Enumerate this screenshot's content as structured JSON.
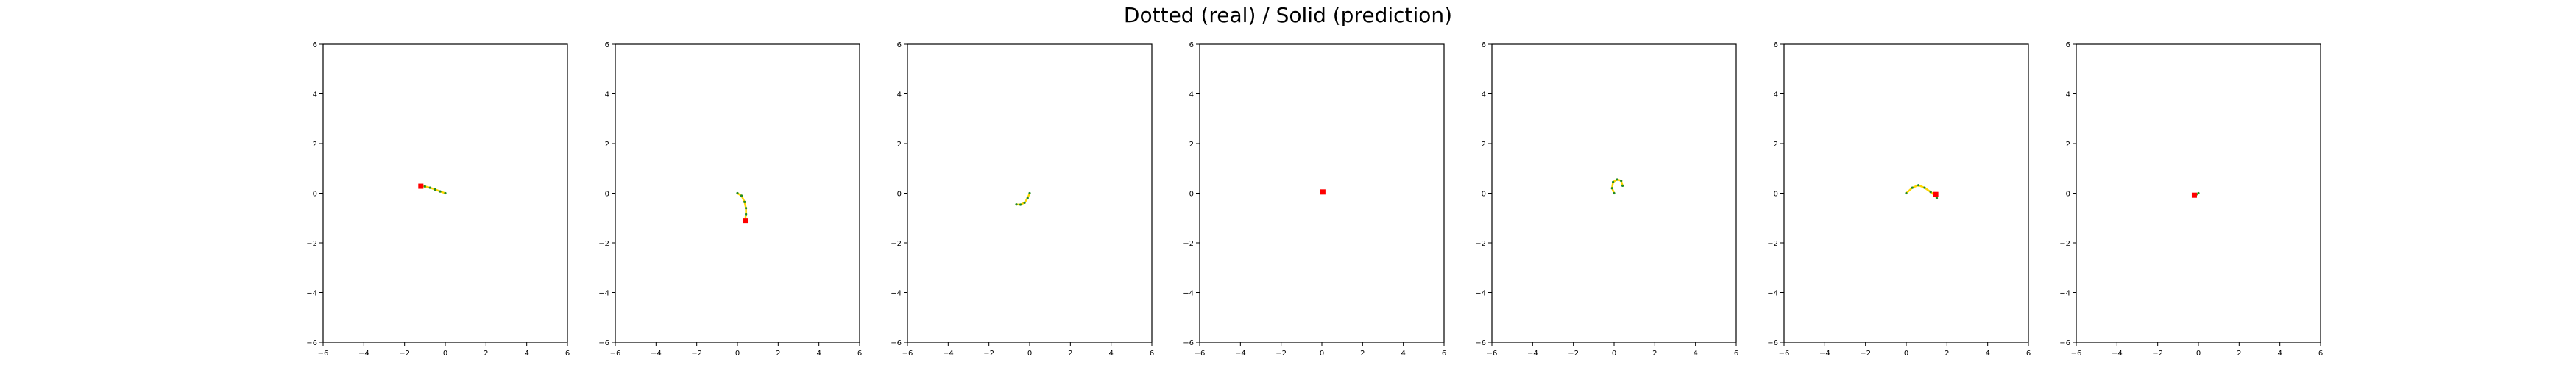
{
  "title": "Dotted (real) / Solid (prediction)",
  "chart_data": [
    {
      "type": "line",
      "xlim": [
        -6,
        6
      ],
      "ylim": [
        -6,
        6
      ],
      "xticks": [
        -6,
        -4,
        -2,
        0,
        2,
        4,
        6
      ],
      "yticks": [
        -6,
        -4,
        -2,
        0,
        2,
        4,
        6
      ],
      "grid": false,
      "real": [
        [
          0,
          0
        ],
        [
          -0.25,
          0.07
        ],
        [
          -0.5,
          0.15
        ],
        [
          -0.75,
          0.22
        ],
        [
          -1.0,
          0.27
        ],
        [
          -1.2,
          0.28
        ]
      ],
      "prediction": [
        [
          0,
          0
        ],
        [
          -0.25,
          0.07
        ],
        [
          -0.5,
          0.15
        ],
        [
          -0.75,
          0.22
        ],
        [
          -1.0,
          0.27
        ],
        [
          -1.2,
          0.28
        ]
      ],
      "end_marker": [
        -1.2,
        0.28
      ]
    },
    {
      "type": "line",
      "xlim": [
        -6,
        6
      ],
      "ylim": [
        -6,
        6
      ],
      "xticks": [
        -6,
        -4,
        -2,
        0,
        2,
        4,
        6
      ],
      "yticks": [
        -6,
        -4,
        -2,
        0,
        2,
        4,
        6
      ],
      "grid": false,
      "real": [
        [
          0,
          0
        ],
        [
          0.2,
          -0.1
        ],
        [
          0.35,
          -0.35
        ],
        [
          0.42,
          -0.6
        ],
        [
          0.42,
          -0.85
        ],
        [
          0.38,
          -1.1
        ]
      ],
      "prediction": [
        [
          0,
          0
        ],
        [
          0.2,
          -0.1
        ],
        [
          0.35,
          -0.35
        ],
        [
          0.42,
          -0.6
        ],
        [
          0.42,
          -0.85
        ],
        [
          0.38,
          -1.1
        ]
      ],
      "end_marker": [
        0.38,
        -1.1
      ]
    },
    {
      "type": "line",
      "xlim": [
        -6,
        6
      ],
      "ylim": [
        -6,
        6
      ],
      "xticks": [
        -6,
        -4,
        -2,
        0,
        2,
        4,
        6
      ],
      "yticks": [
        -6,
        -4,
        -2,
        0,
        2,
        4,
        6
      ],
      "grid": false,
      "real": [
        [
          0,
          0
        ],
        [
          -0.1,
          -0.2
        ],
        [
          -0.25,
          -0.38
        ],
        [
          -0.45,
          -0.46
        ],
        [
          -0.65,
          -0.45
        ]
      ],
      "prediction": [
        [
          0,
          0
        ],
        [
          -0.1,
          -0.2
        ],
        [
          -0.25,
          -0.38
        ],
        [
          -0.45,
          -0.46
        ],
        [
          -0.65,
          -0.45
        ]
      ],
      "end_marker": null
    },
    {
      "type": "line",
      "xlim": [
        -6,
        6
      ],
      "ylim": [
        -6,
        6
      ],
      "xticks": [
        -6,
        -4,
        -2,
        0,
        2,
        4,
        6
      ],
      "yticks": [
        -6,
        -4,
        -2,
        0,
        2,
        4,
        6
      ],
      "grid": false,
      "real": [
        [
          0,
          0
        ],
        [
          0.05,
          0.05
        ]
      ],
      "prediction": [
        [
          0,
          0
        ],
        [
          0.05,
          0.05
        ]
      ],
      "end_marker": [
        0.05,
        0.05
      ]
    },
    {
      "type": "line",
      "xlim": [
        -6,
        6
      ],
      "ylim": [
        -6,
        6
      ],
      "xticks": [
        -6,
        -4,
        -2,
        0,
        2,
        4,
        6
      ],
      "yticks": [
        -6,
        -4,
        -2,
        0,
        2,
        4,
        6
      ],
      "grid": false,
      "real": [
        [
          0,
          0
        ],
        [
          -0.1,
          0.2
        ],
        [
          -0.05,
          0.45
        ],
        [
          0.15,
          0.55
        ],
        [
          0.35,
          0.5
        ],
        [
          0.42,
          0.3
        ]
      ],
      "prediction": [
        [
          0,
          0
        ],
        [
          -0.1,
          0.2
        ],
        [
          -0.05,
          0.45
        ],
        [
          0.15,
          0.55
        ],
        [
          0.35,
          0.5
        ],
        [
          0.42,
          0.3
        ]
      ],
      "end_marker": null
    },
    {
      "type": "line",
      "xlim": [
        -6,
        6
      ],
      "ylim": [
        -6,
        6
      ],
      "xticks": [
        -6,
        -4,
        -2,
        0,
        2,
        4,
        6
      ],
      "yticks": [
        -6,
        -4,
        -2,
        0,
        2,
        4,
        6
      ],
      "grid": false,
      "real": [
        [
          0,
          0
        ],
        [
          0.3,
          0.22
        ],
        [
          0.6,
          0.32
        ],
        [
          0.9,
          0.22
        ],
        [
          1.2,
          0.05
        ],
        [
          1.45,
          -0.12
        ],
        [
          1.5,
          -0.2
        ]
      ],
      "prediction": [
        [
          0,
          0
        ],
        [
          0.3,
          0.22
        ],
        [
          0.6,
          0.32
        ],
        [
          0.9,
          0.22
        ],
        [
          1.2,
          0.05
        ],
        [
          1.45,
          -0.12
        ],
        [
          1.5,
          -0.2
        ]
      ],
      "end_marker": [
        1.45,
        -0.05
      ]
    },
    {
      "type": "line",
      "xlim": [
        -6,
        6
      ],
      "ylim": [
        -6,
        6
      ],
      "xticks": [
        -6,
        -4,
        -2,
        0,
        2,
        4,
        6
      ],
      "yticks": [
        -6,
        -4,
        -2,
        0,
        2,
        4,
        6
      ],
      "grid": false,
      "real": [
        [
          0,
          0
        ],
        [
          -0.1,
          -0.05
        ],
        [
          -0.2,
          -0.08
        ]
      ],
      "prediction": [
        [
          0,
          0
        ],
        [
          -0.1,
          -0.05
        ],
        [
          -0.2,
          -0.08
        ]
      ],
      "end_marker": [
        -0.2,
        -0.08
      ]
    }
  ],
  "colors": {
    "axes": "#000000",
    "real": "#7f7f7f",
    "prediction": "#ffd700",
    "end_marker": "#ff0000",
    "point": "#228b22"
  }
}
